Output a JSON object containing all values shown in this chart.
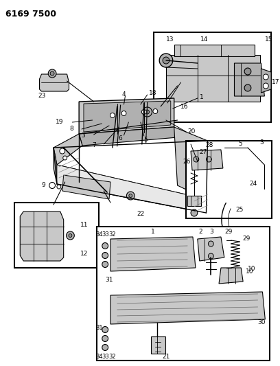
{
  "title": "6169 7500",
  "bg": "#ffffff",
  "lc": "#000000",
  "gray1": "#c8c8c8",
  "gray2": "#b0b0b0",
  "gray3": "#909090"
}
